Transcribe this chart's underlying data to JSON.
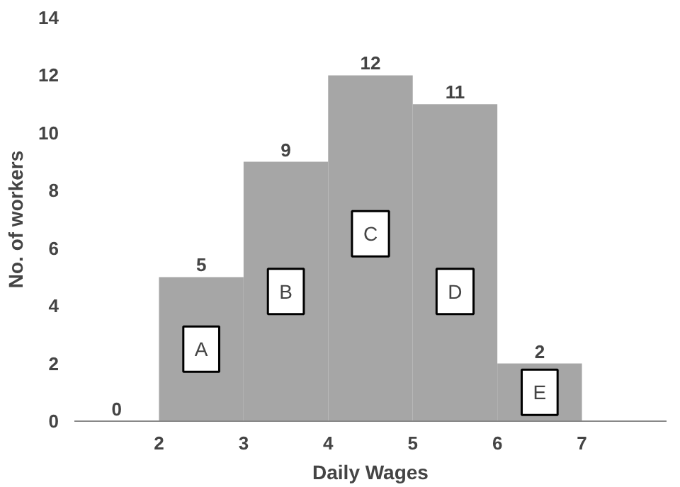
{
  "chart_data": {
    "type": "histogram",
    "xlabel": "Daily Wages",
    "ylabel": "No. of workers",
    "bins": [
      1,
      2,
      3,
      4,
      5,
      6,
      7
    ],
    "values": [
      0,
      5,
      9,
      12,
      11,
      2
    ],
    "color": "#a6a6a6",
    "data_labels": true,
    "xlim": [
      1,
      8
    ],
    "xticks": [
      2,
      3,
      4,
      5,
      6,
      7
    ],
    "ylim": [
      0,
      14
    ],
    "yticks": [
      0,
      2,
      4,
      6,
      8,
      10,
      12,
      14
    ],
    "grid": false,
    "annotations": [
      {
        "text": "A",
        "x": 2.5,
        "y": 2.5
      },
      {
        "text": "B",
        "x": 3.5,
        "y": 4.5
      },
      {
        "text": "C",
        "x": 4.5,
        "y": 6.5
      },
      {
        "text": "D",
        "x": 5.5,
        "y": 4.5
      },
      {
        "text": "E",
        "x": 6.5,
        "y": 1
      }
    ]
  }
}
